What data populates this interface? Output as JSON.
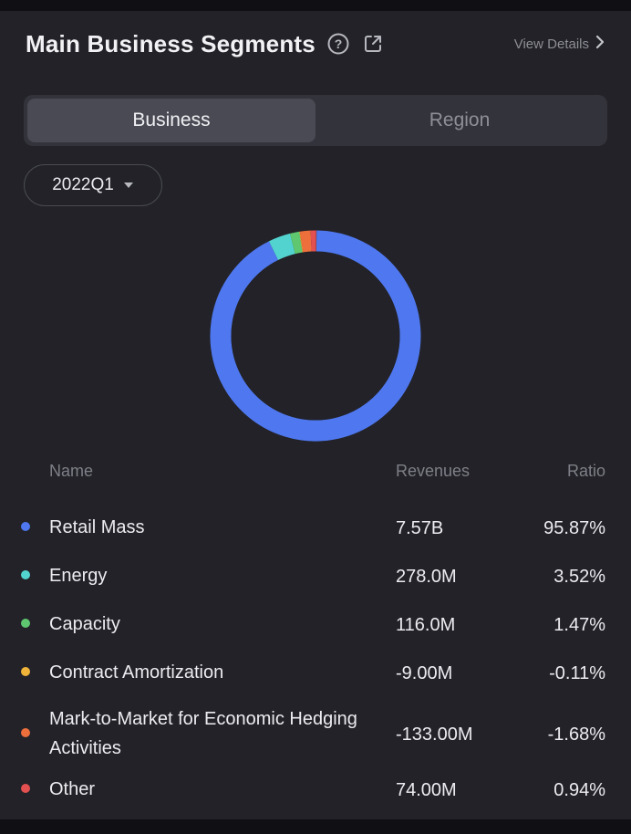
{
  "header": {
    "title": "Main Business Segments",
    "view_details": "View Details"
  },
  "tabs": [
    {
      "label": "Business",
      "active": true
    },
    {
      "label": "Region",
      "active": false
    }
  ],
  "period": {
    "selected": "2022Q1"
  },
  "table": {
    "columns": {
      "name": "Name",
      "revenues": "Revenues",
      "ratio": "Ratio"
    },
    "rows": [
      {
        "name": "Retail Mass",
        "revenues": "7.57B",
        "ratio": "95.87%",
        "color": "#4f78f0"
      },
      {
        "name": "Energy",
        "revenues": "278.0M",
        "ratio": "3.52%",
        "color": "#53d3cf"
      },
      {
        "name": "Capacity",
        "revenues": "116.0M",
        "ratio": "1.47%",
        "color": "#5fc76f"
      },
      {
        "name": "Contract Amortization",
        "revenues": "-9.00M",
        "ratio": "-0.11%",
        "color": "#f0b43a"
      },
      {
        "name": "Mark-to-Market for Economic Hedging Activities",
        "revenues": "-133.00M",
        "ratio": "-1.68%",
        "color": "#ec6f3c"
      },
      {
        "name": "Other",
        "revenues": "74.00M",
        "ratio": "0.94%",
        "color": "#e25050"
      }
    ]
  },
  "chart_data": {
    "type": "pie",
    "categories": [
      "Retail Mass",
      "Energy",
      "Capacity",
      "Contract Amortization",
      "Mark-to-Market for Economic Hedging Activities",
      "Other"
    ],
    "values": [
      95.87,
      3.52,
      1.47,
      -0.11,
      -1.68,
      0.94
    ],
    "colors": [
      "#4f78f0",
      "#53d3cf",
      "#5fc76f",
      "#f0b43a",
      "#ec6f3c",
      "#e25050"
    ],
    "unit": "%"
  },
  "colors": {
    "panel_bg": "#222228",
    "accent": "#4f78f0"
  }
}
